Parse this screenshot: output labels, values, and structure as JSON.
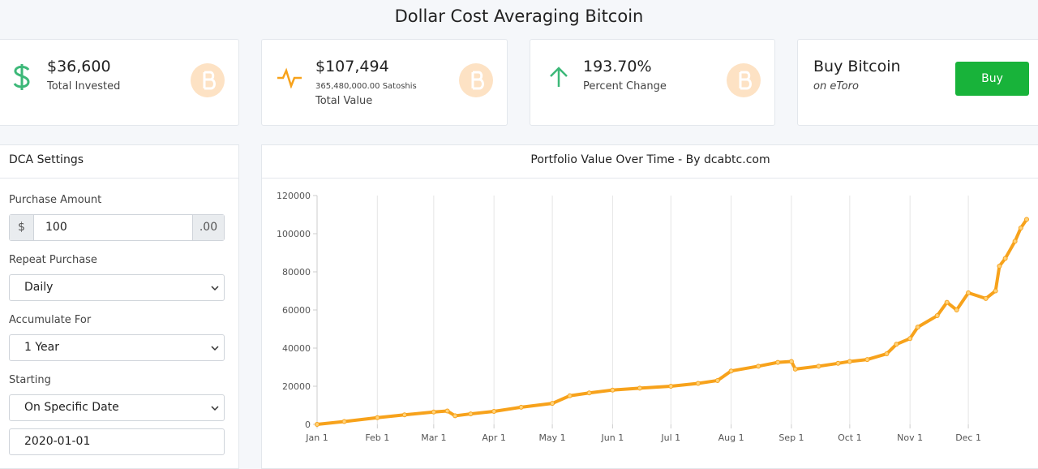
{
  "header": {
    "title": "Dollar Cost Averaging Bitcoin"
  },
  "cards": [
    {
      "value": "$36,600",
      "label": "Total Invested"
    },
    {
      "value": "$107,494",
      "detail": "365,480,000.00 Satoshis",
      "label": "Total Value"
    },
    {
      "value": "193.70%",
      "label": "Percent Change"
    },
    {
      "title": "Buy Bitcoin",
      "subtitle": "on eToro",
      "button": "Buy"
    }
  ],
  "settings": {
    "title": "DCA Settings",
    "fields": [
      {
        "label": "Purchase Amount",
        "prefix": "$",
        "value": "100",
        "suffix": ".00"
      },
      {
        "label": "Repeat Purchase",
        "value": "Daily"
      },
      {
        "label": "Accumulate For",
        "value": "1 Year"
      },
      {
        "label": "Starting",
        "value": "On Specific Date"
      }
    ],
    "start_date": "2020-01-01"
  },
  "chart_data": {
    "type": "line",
    "title": "Portfolio Value Over Time - By dcabtc.com",
    "color": "#f7a21b",
    "grid": true,
    "x": [
      "Jan 1",
      "Jan 15",
      "Feb 1",
      "Feb 15",
      "Mar 1",
      "Mar 8",
      "Mar 12",
      "Mar 20",
      "Apr 1",
      "Apr 15",
      "May 1",
      "May 10",
      "May 20",
      "Jun 1",
      "Jun 15",
      "Jul 1",
      "Jul 15",
      "Jul 25",
      "Aug 1",
      "Aug 15",
      "Aug 25",
      "Sep 1",
      "Sep 3",
      "Sep 15",
      "Sep 25",
      "Oct 1",
      "Oct 10",
      "Oct 20",
      "Oct 25",
      "Nov 1",
      "Nov 5",
      "Nov 15",
      "Nov 20",
      "Nov 25",
      "Dec 1",
      "Dec 10",
      "Dec 15",
      "Dec 17",
      "Dec 20",
      "Dec 25",
      "Dec 28",
      "Dec 31"
    ],
    "values": [
      0,
      1500,
      3500,
      5000,
      6500,
      7000,
      4500,
      5500,
      6800,
      9000,
      11000,
      15000,
      16500,
      18000,
      19000,
      20000,
      21500,
      23000,
      28000,
      30500,
      32500,
      33000,
      29000,
      30500,
      32000,
      33000,
      34000,
      37000,
      42000,
      45000,
      51000,
      57000,
      64000,
      60000,
      69000,
      66000,
      70000,
      83000,
      87000,
      96000,
      103000,
      107494
    ],
    "xlim": [
      "Jan 1",
      "Dec 31"
    ],
    "xticks": [
      "Jan 1",
      "Feb 1",
      "Mar 1",
      "Apr 1",
      "May 1",
      "Jun 1",
      "Jul 1",
      "Aug 1",
      "Sep 1",
      "Oct 1",
      "Nov 1",
      "Dec 1"
    ],
    "ylim": [
      0,
      120000
    ],
    "yticks": [
      0,
      20000,
      40000,
      60000,
      80000,
      100000,
      120000
    ]
  }
}
